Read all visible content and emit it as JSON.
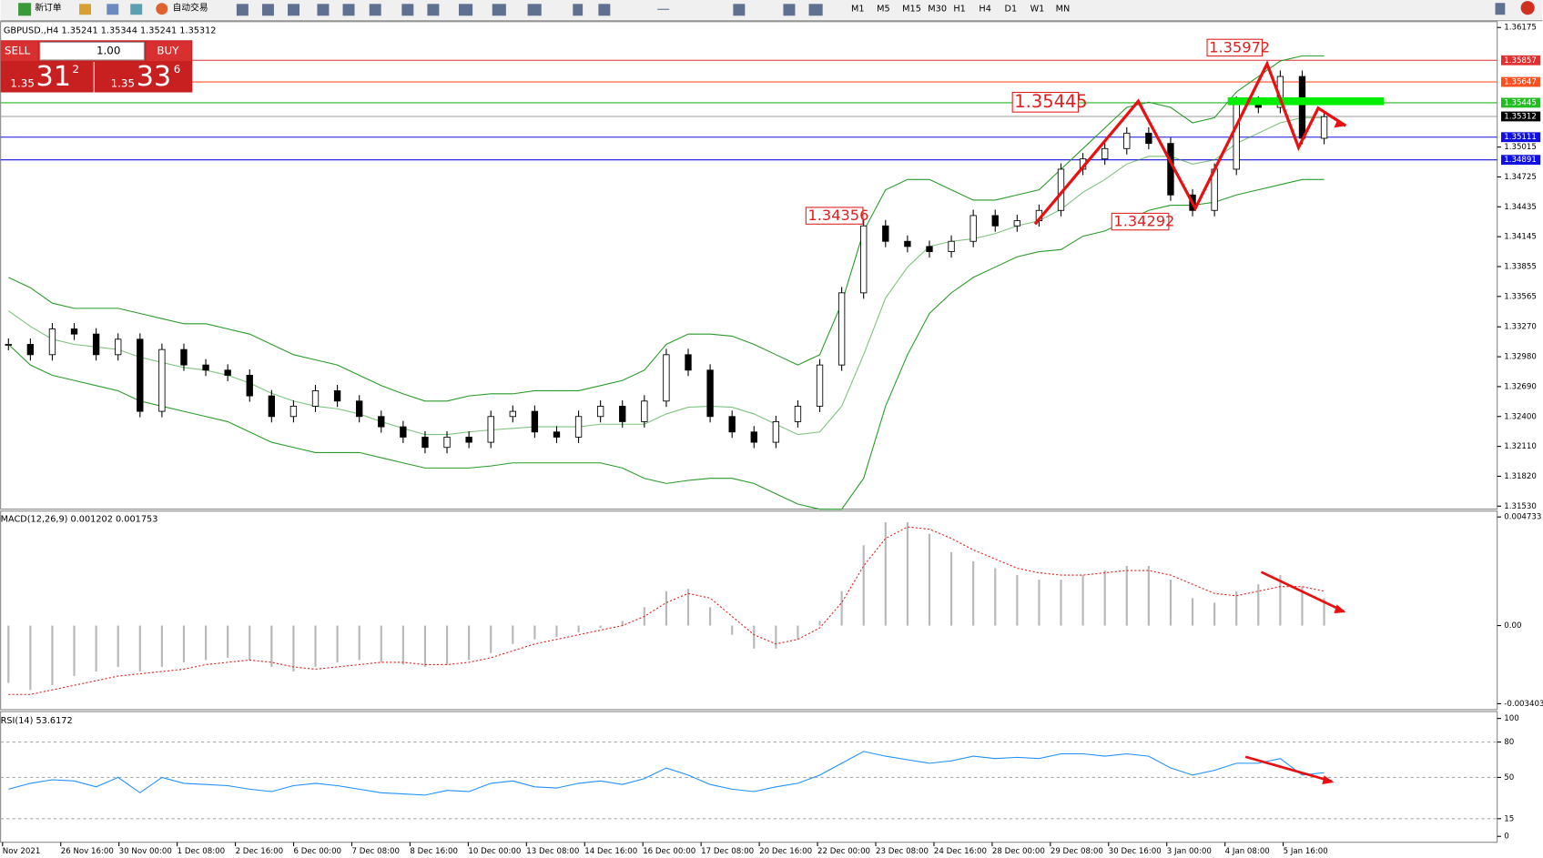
{
  "toolbar": {
    "new_order": "新订单",
    "auto_trading": "自动交易",
    "timeframes": [
      "M1",
      "M5",
      "M15",
      "M30",
      "H1",
      "H4",
      "D1",
      "W1",
      "MN"
    ]
  },
  "trade_panel": {
    "sell": "SELL",
    "lot": "1.00",
    "buy": "BUY",
    "sell_big": "1.35",
    "sell_pips": "31",
    "sell_frac": "2",
    "buy_big": "1.35",
    "buy_pips": "33",
    "buy_frac": "6"
  },
  "price_chart": {
    "symbol_info": "GBPUSD.,H4  1.35241 1.35344 1.35241 1.35312",
    "ylim": [
      1.3153,
      1.36175
    ],
    "yticks": [
      {
        "value": 1.36175,
        "label": "1.36175"
      },
      {
        "value": 1.35015,
        "label": "1.35015"
      },
      {
        "value": 1.34725,
        "label": "1.34725"
      },
      {
        "value": 1.34435,
        "label": "1.34435"
      },
      {
        "value": 1.34145,
        "label": "1.34145"
      },
      {
        "value": 1.33855,
        "label": "1.33855"
      },
      {
        "value": 1.33565,
        "label": "1.33565"
      },
      {
        "value": 1.3327,
        "label": "1.33270"
      },
      {
        "value": 1.3298,
        "label": "1.32980"
      },
      {
        "value": 1.3269,
        "label": "1.32690"
      },
      {
        "value": 1.324,
        "label": "1.32400"
      },
      {
        "value": 1.3211,
        "label": "1.32110"
      },
      {
        "value": 1.3182,
        "label": "1.31820"
      },
      {
        "value": 1.3153,
        "label": "1.31530"
      }
    ],
    "levels": [
      {
        "value": 1.35857,
        "color": "#e03030"
      },
      {
        "value": 1.35647,
        "color": "#ff5020"
      },
      {
        "value": 1.35445,
        "color": "#22bb22"
      },
      {
        "value": 1.35312,
        "color": "#999999"
      },
      {
        "value": 1.35111,
        "color": "#1010e0"
      },
      {
        "value": 1.34891,
        "color": "#1010e0"
      }
    ],
    "annotations": [
      "1.35972",
      "1.35445",
      "1.34356",
      "1.34292"
    ],
    "closes": [
      1.331,
      1.33,
      1.3325,
      1.332,
      1.33,
      1.3315,
      1.3245,
      1.3305,
      1.329,
      1.3285,
      1.328,
      1.326,
      1.324,
      1.325,
      1.3265,
      1.3255,
      1.324,
      1.323,
      1.322,
      1.321,
      1.322,
      1.3215,
      1.324,
      1.3245,
      1.3225,
      1.322,
      1.324,
      1.325,
      1.3235,
      1.3255,
      1.33,
      1.3285,
      1.324,
      1.3225,
      1.3215,
      1.3235,
      1.325,
      1.329,
      1.336,
      1.3425,
      1.341,
      1.3405,
      1.34,
      1.341,
      1.3435,
      1.3425,
      1.343,
      1.344,
      1.348,
      1.349,
      1.35,
      1.3515,
      1.3505,
      1.3455,
      1.344,
      1.348,
      1.3545,
      1.354,
      1.357,
      1.351,
      1.3531
    ],
    "bb_upper": [
      1.3375,
      1.3365,
      1.335,
      1.3345,
      1.3345,
      1.3345,
      1.334,
      1.3335,
      1.333,
      1.333,
      1.3325,
      1.332,
      1.331,
      1.33,
      1.3295,
      1.329,
      1.328,
      1.327,
      1.3262,
      1.3255,
      1.3255,
      1.326,
      1.3262,
      1.3262,
      1.3265,
      1.3265,
      1.3265,
      1.327,
      1.3275,
      1.3285,
      1.331,
      1.332,
      1.332,
      1.3318,
      1.331,
      1.33,
      1.329,
      1.33,
      1.335,
      1.342,
      1.346,
      1.347,
      1.347,
      1.346,
      1.345,
      1.345,
      1.3455,
      1.346,
      1.348,
      1.35,
      1.352,
      1.354,
      1.3545,
      1.354,
      1.3525,
      1.353,
      1.3555,
      1.357,
      1.3585,
      1.359,
      1.359
    ],
    "bb_lower": [
      1.331,
      1.329,
      1.328,
      1.3275,
      1.327,
      1.3265,
      1.3255,
      1.325,
      1.3245,
      1.324,
      1.3235,
      1.3225,
      1.3215,
      1.321,
      1.3205,
      1.3205,
      1.3205,
      1.32,
      1.3195,
      1.319,
      1.319,
      1.319,
      1.3192,
      1.3195,
      1.3195,
      1.3195,
      1.3195,
      1.3195,
      1.319,
      1.318,
      1.3175,
      1.3178,
      1.318,
      1.318,
      1.3175,
      1.3165,
      1.3155,
      1.315,
      1.315,
      1.318,
      1.325,
      1.33,
      1.334,
      1.336,
      1.3375,
      1.3385,
      1.3395,
      1.34,
      1.3402,
      1.3415,
      1.342,
      1.343,
      1.344,
      1.3445,
      1.3445,
      1.3448,
      1.3455,
      1.346,
      1.3465,
      1.347,
      1.347
    ]
  },
  "macd": {
    "label": "MACD(12,26,9) 0.001202 0.001753",
    "ylim": [
      -0.003403,
      0.004733
    ],
    "yticks": [
      0.004733,
      {
        "value": 0,
        "label": "0.00"
      },
      -0.003403
    ],
    "histogram": [
      -0.0025,
      -0.0028,
      -0.0026,
      -0.0022,
      -0.002,
      -0.0018,
      -0.002,
      -0.0018,
      -0.0016,
      -0.0015,
      -0.0014,
      -0.0015,
      -0.0018,
      -0.002,
      -0.0018,
      -0.0016,
      -0.0015,
      -0.0016,
      -0.0017,
      -0.0018,
      -0.0017,
      -0.0015,
      -0.0012,
      -0.0008,
      -0.0006,
      -0.0005,
      -0.0003,
      -0.0001,
      0.0002,
      0.0008,
      0.0015,
      0.0016,
      0.0008,
      -0.0004,
      -0.001,
      -0.001,
      -0.0006,
      0.0002,
      0.0015,
      0.0035,
      0.0045,
      0.0045,
      0.004,
      0.0032,
      0.0028,
      0.0025,
      0.0022,
      0.002,
      0.002,
      0.0022,
      0.0024,
      0.0026,
      0.0026,
      0.002,
      0.0012,
      0.001,
      0.0015,
      0.0018,
      0.0022,
      0.0017,
      0.0012
    ],
    "signal": [
      -0.003,
      -0.003,
      -0.0028,
      -0.0026,
      -0.0024,
      -0.0022,
      -0.0021,
      -0.002,
      -0.0019,
      -0.0017,
      -0.0016,
      -0.0015,
      -0.0016,
      -0.0018,
      -0.0019,
      -0.0018,
      -0.0017,
      -0.0016,
      -0.0016,
      -0.0017,
      -0.0017,
      -0.0016,
      -0.0014,
      -0.0011,
      -0.0008,
      -0.0006,
      -0.0004,
      -0.0002,
      0,
      0.0004,
      0.001,
      0.0014,
      0.0012,
      0.0004,
      -0.0004,
      -0.0008,
      -0.0006,
      -0.0001,
      0.001,
      0.0026,
      0.0038,
      0.0043,
      0.0042,
      0.0038,
      0.0033,
      0.0029,
      0.0025,
      0.0023,
      0.0022,
      0.0022,
      0.0023,
      0.0024,
      0.0024,
      0.0022,
      0.0018,
      0.0014,
      0.0013,
      0.0015,
      0.0017,
      0.0017,
      0.0015
    ]
  },
  "rsi": {
    "label": "RSI(14) 53.6172",
    "ylim": [
      0,
      100
    ],
    "yticks": [
      100,
      80,
      50,
      15,
      0
    ],
    "levels": [
      80,
      50,
      15
    ],
    "values": [
      40,
      45,
      48,
      47,
      42,
      50,
      37,
      50,
      45,
      44,
      43,
      40,
      38,
      43,
      45,
      43,
      40,
      37,
      36,
      35,
      39,
      38,
      45,
      47,
      42,
      41,
      45,
      47,
      44,
      49,
      58,
      52,
      44,
      40,
      38,
      42,
      45,
      52,
      62,
      72,
      68,
      65,
      62,
      64,
      68,
      66,
      67,
      66,
      70,
      70,
      68,
      70,
      68,
      58,
      52,
      56,
      62,
      62,
      66,
      52,
      54
    ]
  },
  "time_axis": [
    "Nov 2021",
    "26 Nov 16:00",
    "30 Nov 00:00",
    "1 Dec 08:00",
    "2 Dec 16:00",
    "6 Dec 00:00",
    "7 Dec 08:00",
    "8 Dec 16:00",
    "10 Dec 00:00",
    "13 Dec 08:00",
    "14 Dec 16:00",
    "16 Dec 00:00",
    "17 Dec 08:00",
    "20 Dec 16:00",
    "22 Dec 00:00",
    "23 Dec 08:00",
    "24 Dec 16:00",
    "28 Dec 00:00",
    "29 Dec 08:00",
    "30 Dec 16:00",
    "3 Jan 00:00",
    "4 Jan 08:00",
    "5 Jan 16:00"
  ]
}
